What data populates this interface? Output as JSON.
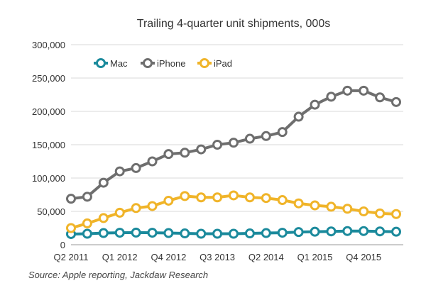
{
  "chart_data": {
    "type": "line",
    "title": "Trailing 4-quarter unit shipments, 000s",
    "xlabel": "",
    "ylabel": "",
    "ylim": [
      0,
      300000
    ],
    "yticks": [
      "300,000",
      "250,000",
      "200,000",
      "150,000",
      "100,000",
      "50,000",
      "0"
    ],
    "ytick_values": [
      300000,
      250000,
      200000,
      150000,
      100000,
      50000,
      0
    ],
    "categories": [
      "Q2 2011",
      "Q3 2011",
      "Q4 2011",
      "Q1 2012",
      "Q2 2012",
      "Q3 2012",
      "Q4 2012",
      "Q1 2013",
      "Q2 2013",
      "Q3 2013",
      "Q4 2013",
      "Q1 2014",
      "Q2 2014",
      "Q3 2014",
      "Q4 2014",
      "Q1 2015",
      "Q2 2015",
      "Q3 2015",
      "Q4 2015",
      "Q1 2016",
      "Q2 2016"
    ],
    "xtick_labels": [
      {
        "index": 0,
        "label": "Q2 2011"
      },
      {
        "index": 3,
        "label": "Q1 2012"
      },
      {
        "index": 6,
        "label": "Q4 2012"
      },
      {
        "index": 9,
        "label": "Q3 2013"
      },
      {
        "index": 12,
        "label": "Q2 2014"
      },
      {
        "index": 15,
        "label": "Q1 2015"
      },
      {
        "index": 18,
        "label": "Q4 2015"
      }
    ],
    "legend_position": "top-left",
    "series": [
      {
        "name": "Mac",
        "color": "#1b8a9c",
        "values": [
          16000,
          16500,
          17500,
          18000,
          18200,
          18000,
          17500,
          17000,
          16500,
          16500,
          16500,
          17000,
          17500,
          18000,
          19000,
          19500,
          20000,
          20500,
          20500,
          20000,
          19500
        ]
      },
      {
        "name": "iPhone",
        "color": "#6e6e6e",
        "values": [
          69000,
          72000,
          93000,
          110000,
          115000,
          125000,
          136000,
          138000,
          143000,
          150000,
          153000,
          159000,
          163000,
          169000,
          192000,
          210000,
          222000,
          231000,
          231000,
          221000,
          214000
        ]
      },
      {
        "name": "iPad",
        "color": "#f0b429",
        "values": [
          25000,
          32000,
          40000,
          48000,
          55000,
          58000,
          66000,
          73000,
          71000,
          71000,
          74000,
          71000,
          70000,
          67000,
          62000,
          59000,
          57000,
          54000,
          50000,
          47000,
          46000
        ]
      }
    ]
  },
  "source": "Source: Apple reporting, Jackdaw Research"
}
